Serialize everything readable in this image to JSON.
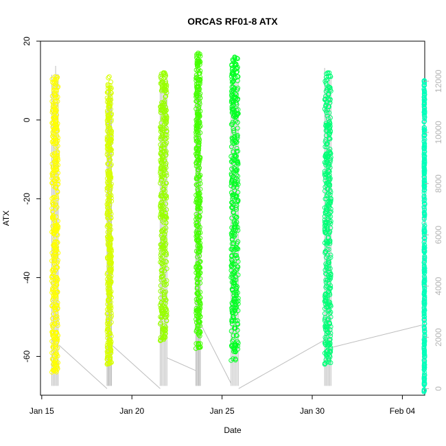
{
  "chart_data": {
    "type": "scatter",
    "title": "ORCAS RF01-8 ATX",
    "xlabel": "Date",
    "ylabel": "ATX",
    "x_ticks": [
      "Jan 15",
      "Jan 20",
      "Jan 25",
      "Jan 30",
      "Feb 04"
    ],
    "x_tick_values": [
      15,
      20,
      25,
      30,
      35
    ],
    "xlim": [
      14.93,
      36.24
    ],
    "y_ticks": [
      -60,
      -40,
      -20,
      0,
      20
    ],
    "ylim": [
      -69.85,
      20.0
    ],
    "y2_ticks": [
      0,
      2000,
      4000,
      6000,
      8000,
      10000,
      12000
    ],
    "y2lim": [
      -258,
      13560
    ],
    "y2_color": "#b4b4b4",
    "grid": false,
    "legend": "none",
    "flights": [
      {
        "x0": 15.56,
        "x1": 15.91,
        "ymin": -64,
        "ymax": 11,
        "color": "#ffff00",
        "alt_max": 12600
      },
      {
        "x0": 18.62,
        "x1": 18.87,
        "ymin": -62,
        "ymax": 11,
        "color": "#d8ff00",
        "alt_max": 12000
      },
      {
        "x0": 21.57,
        "x1": 21.94,
        "ymin": -56,
        "ymax": 12,
        "color": "#99ff00",
        "alt_max": 12500
      },
      {
        "x0": 23.55,
        "x1": 23.8,
        "ymin": -58,
        "ymax": 17,
        "color": "#44ff00",
        "alt_max": 12400
      },
      {
        "x0": 25.5,
        "x1": 25.9,
        "ymin": -61,
        "ymax": 16,
        "color": "#00ff22",
        "alt_max": 12600
      },
      {
        "x0": 30.69,
        "x1": 31.04,
        "ymin": -62,
        "ymax": 12,
        "color": "#00ff77",
        "alt_max": 12700
      },
      {
        "x0": 36.2,
        "x1": 36.24,
        "ymin": -69,
        "ymax": 10,
        "color": "#00ffbb",
        "alt_max": 12100
      }
    ],
    "altitude_connectors": [
      [
        15.95,
        1700
      ],
      [
        18.62,
        0
      ],
      [
        18.89,
        1700
      ],
      [
        21.57,
        0
      ],
      [
        21.95,
        1200
      ],
      [
        23.55,
        700
      ],
      [
        23.83,
        2500
      ],
      [
        25.5,
        200
      ],
      [
        25.92,
        0
      ],
      [
        30.69,
        1900
      ],
      [
        31.04,
        1600
      ],
      [
        36.2,
        2500
      ]
    ]
  }
}
